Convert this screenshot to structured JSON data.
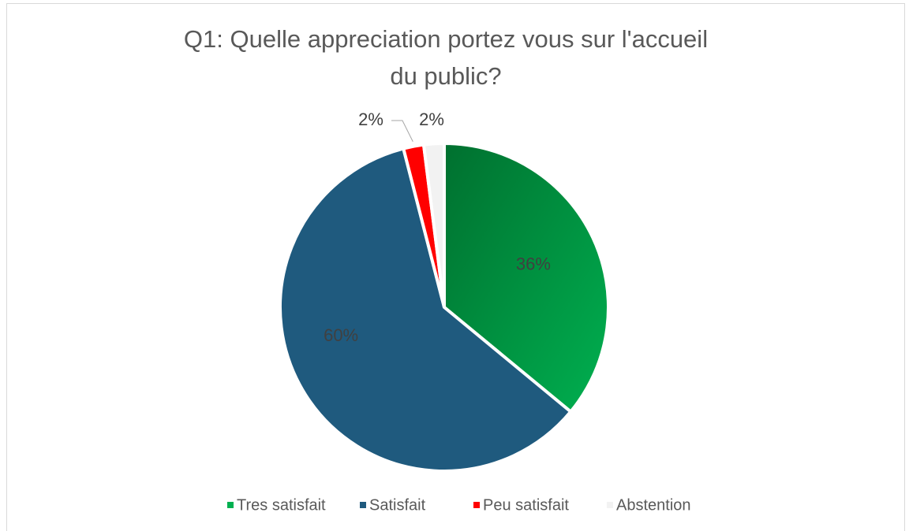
{
  "chart_data": {
    "type": "pie",
    "title": "Q1: Quelle appreciation portez vous sur l'accueil du public?",
    "categories": [
      "Tres satisfait",
      "Satisfait",
      "Peu satisfait",
      "Abstention"
    ],
    "values": [
      36,
      60,
      2,
      2
    ],
    "value_labels": [
      "36%",
      "60%",
      "2%",
      "2%"
    ],
    "colors": [
      "#00b050",
      "#1f5a7e",
      "#ff0000",
      "#f2f2f2"
    ],
    "legend": "bottom"
  }
}
